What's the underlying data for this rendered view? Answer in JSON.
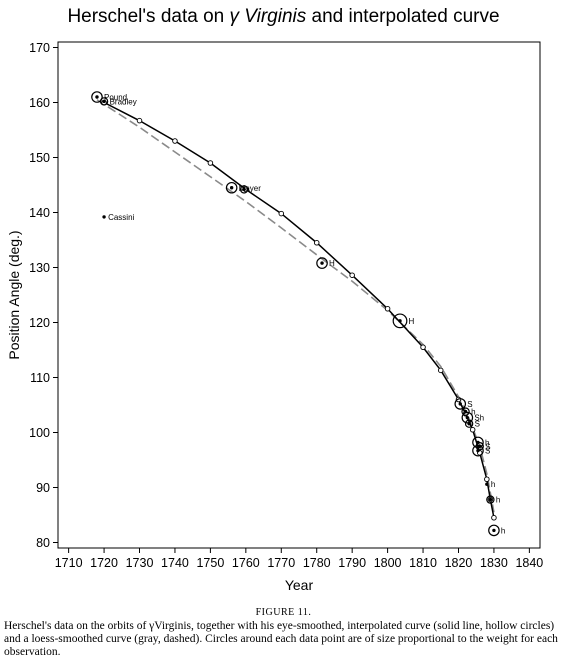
{
  "title_pre": "Herschel's data on ",
  "title_greek": "γ",
  "title_name": "Virginis",
  "title_post": " and interpolated curve",
  "caption_head": "FIGURE 11.",
  "caption_text": "Herschel's data on the orbits of γVirginis, together with his eye-smoothed, interpolated curve (solid line, hollow circles) and a loess-smoothed curve (gray, dashed). Circles around each data point are of size proportional to the weight for each observation.",
  "chart_data": {
    "type": "scatter",
    "xlabel": "Year",
    "ylabel": "Position Angle (deg.)",
    "xlim": [
      1707,
      1843
    ],
    "ylim": [
      79,
      171
    ],
    "xticks": [
      1710,
      1720,
      1730,
      1740,
      1750,
      1760,
      1770,
      1780,
      1790,
      1800,
      1810,
      1820,
      1830,
      1840
    ],
    "yticks": [
      80,
      90,
      100,
      110,
      120,
      130,
      140,
      150,
      160,
      170
    ],
    "observations": [
      {
        "x": 1718,
        "y": 161,
        "w": 2,
        "label": "Pound"
      },
      {
        "x": 1720,
        "y": 160.2,
        "w": 1,
        "label": "Bradley"
      },
      {
        "x": 1720,
        "y": 139.2,
        "w": 0,
        "label": "Cassini"
      },
      {
        "x": 1756,
        "y": 144.5,
        "w": 2,
        "label": "Mayer"
      },
      {
        "x": 1759.5,
        "y": 144.2,
        "w": 1,
        "label": ""
      },
      {
        "x": 1781.5,
        "y": 130.8,
        "w": 2,
        "label": "H"
      },
      {
        "x": 1803.5,
        "y": 120.3,
        "w": 3,
        "label": "H"
      },
      {
        "x": 1820.5,
        "y": 105.2,
        "w": 2,
        "label": "S"
      },
      {
        "x": 1822,
        "y": 103.8,
        "w": 1,
        "label": "h"
      },
      {
        "x": 1822.5,
        "y": 102.7,
        "w": 2,
        "label": "Sh"
      },
      {
        "x": 1823,
        "y": 101.6,
        "w": 1,
        "label": "S"
      },
      {
        "x": 1825.5,
        "y": 98.2,
        "w": 2,
        "label": "h"
      },
      {
        "x": 1826,
        "y": 97.5,
        "w": 1,
        "label": "S"
      },
      {
        "x": 1825.5,
        "y": 96.7,
        "w": 2,
        "label": "S"
      },
      {
        "x": 1828,
        "y": 90.6,
        "w": 0,
        "label": "h"
      },
      {
        "x": 1829,
        "y": 87.8,
        "w": 1,
        "label": "h"
      },
      {
        "x": 1830,
        "y": 82.2,
        "w": 2,
        "label": "h"
      }
    ],
    "series": [
      {
        "style": "solid-black-hollow-circles",
        "x": [
          1720,
          1730,
          1740,
          1750,
          1760,
          1770,
          1780,
          1790,
          1800,
          1810,
          1815,
          1820,
          1822,
          1824,
          1826,
          1828,
          1829,
          1830
        ],
        "y": [
          160,
          156.7,
          153,
          149,
          144.2,
          139.8,
          134.5,
          128.6,
          122.5,
          115.5,
          111.3,
          106,
          103.4,
          100.5,
          96.3,
          91.5,
          87.8,
          84.5
        ]
      },
      {
        "style": "dashed-gray",
        "x": [
          1718,
          1730,
          1740,
          1750,
          1760,
          1770,
          1780,
          1790,
          1800,
          1810,
          1815,
          1820,
          1823,
          1826,
          1828,
          1830
        ],
        "y": [
          160.5,
          155.5,
          151,
          146.5,
          142,
          137.2,
          132.3,
          127.5,
          122.2,
          116,
          112,
          106.5,
          102.5,
          97.5,
          92.5,
          85.5
        ]
      }
    ]
  }
}
